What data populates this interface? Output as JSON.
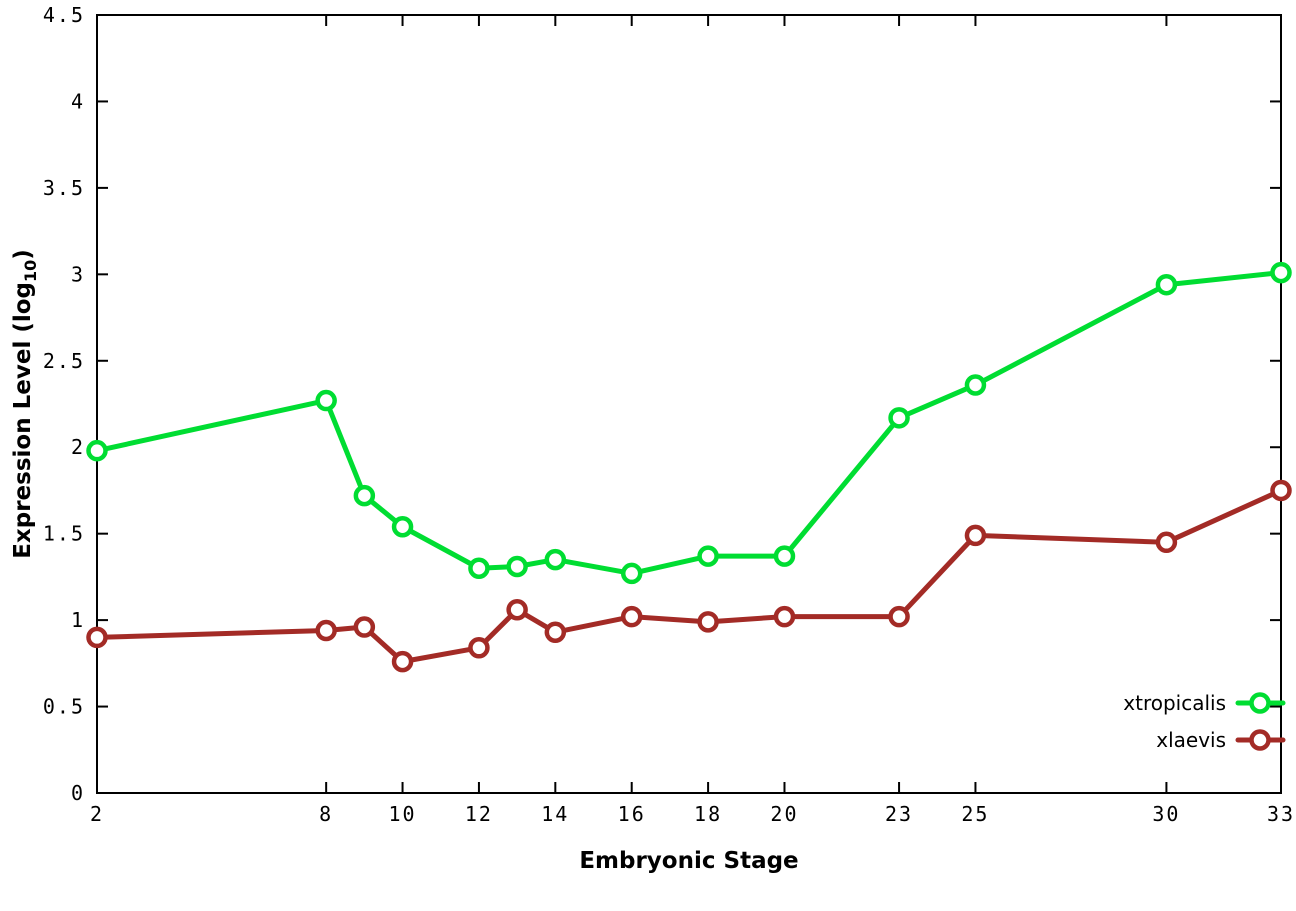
{
  "chart_data": {
    "type": "line",
    "title": "",
    "xlabel": "Embryonic Stage",
    "ylabel": "Expression Level (log10)",
    "ylabel_prefix": "Expression Level (log",
    "ylabel_sub": "10",
    "ylabel_suffix": ")",
    "xlim": [
      2,
      33
    ],
    "ylim": [
      0,
      4.5
    ],
    "grid": false,
    "x_ticks": [
      2,
      8,
      10,
      12,
      14,
      16,
      18,
      20,
      23,
      25,
      30,
      33
    ],
    "x_tick_labels": [
      "2",
      "8",
      "10",
      "12",
      "14",
      "16",
      "18",
      "20",
      "23",
      "25",
      "30",
      "33"
    ],
    "y_ticks": [
      0,
      0.5,
      1,
      1.5,
      2,
      2.5,
      3,
      3.5,
      4,
      4.5
    ],
    "y_tick_labels": [
      "0",
      "0.5",
      "1",
      "1.5",
      "2",
      "2.5",
      "3",
      "3.5",
      "4",
      "4.5"
    ],
    "x": [
      2,
      8,
      9,
      10,
      12,
      13,
      14,
      16,
      18,
      20,
      23,
      25,
      30,
      33
    ],
    "series": [
      {
        "name": "xtropicalis",
        "color": "#00dd32",
        "values": [
          1.98,
          2.27,
          1.72,
          1.54,
          1.3,
          1.31,
          1.35,
          1.27,
          1.37,
          1.37,
          2.17,
          2.36,
          2.94,
          3.01
        ]
      },
      {
        "name": "xlaevis",
        "color": "#a32b26",
        "values": [
          0.9,
          0.94,
          0.96,
          0.76,
          0.84,
          1.06,
          0.93,
          1.02,
          0.99,
          1.02,
          1.02,
          1.49,
          1.45,
          1.75
        ]
      }
    ],
    "legend": {
      "position": "bottom-right",
      "entries": [
        "xtropicalis",
        "xlaevis"
      ]
    },
    "marker": "open-circle",
    "background_color": "#ffffff",
    "border_color": "#000000"
  }
}
